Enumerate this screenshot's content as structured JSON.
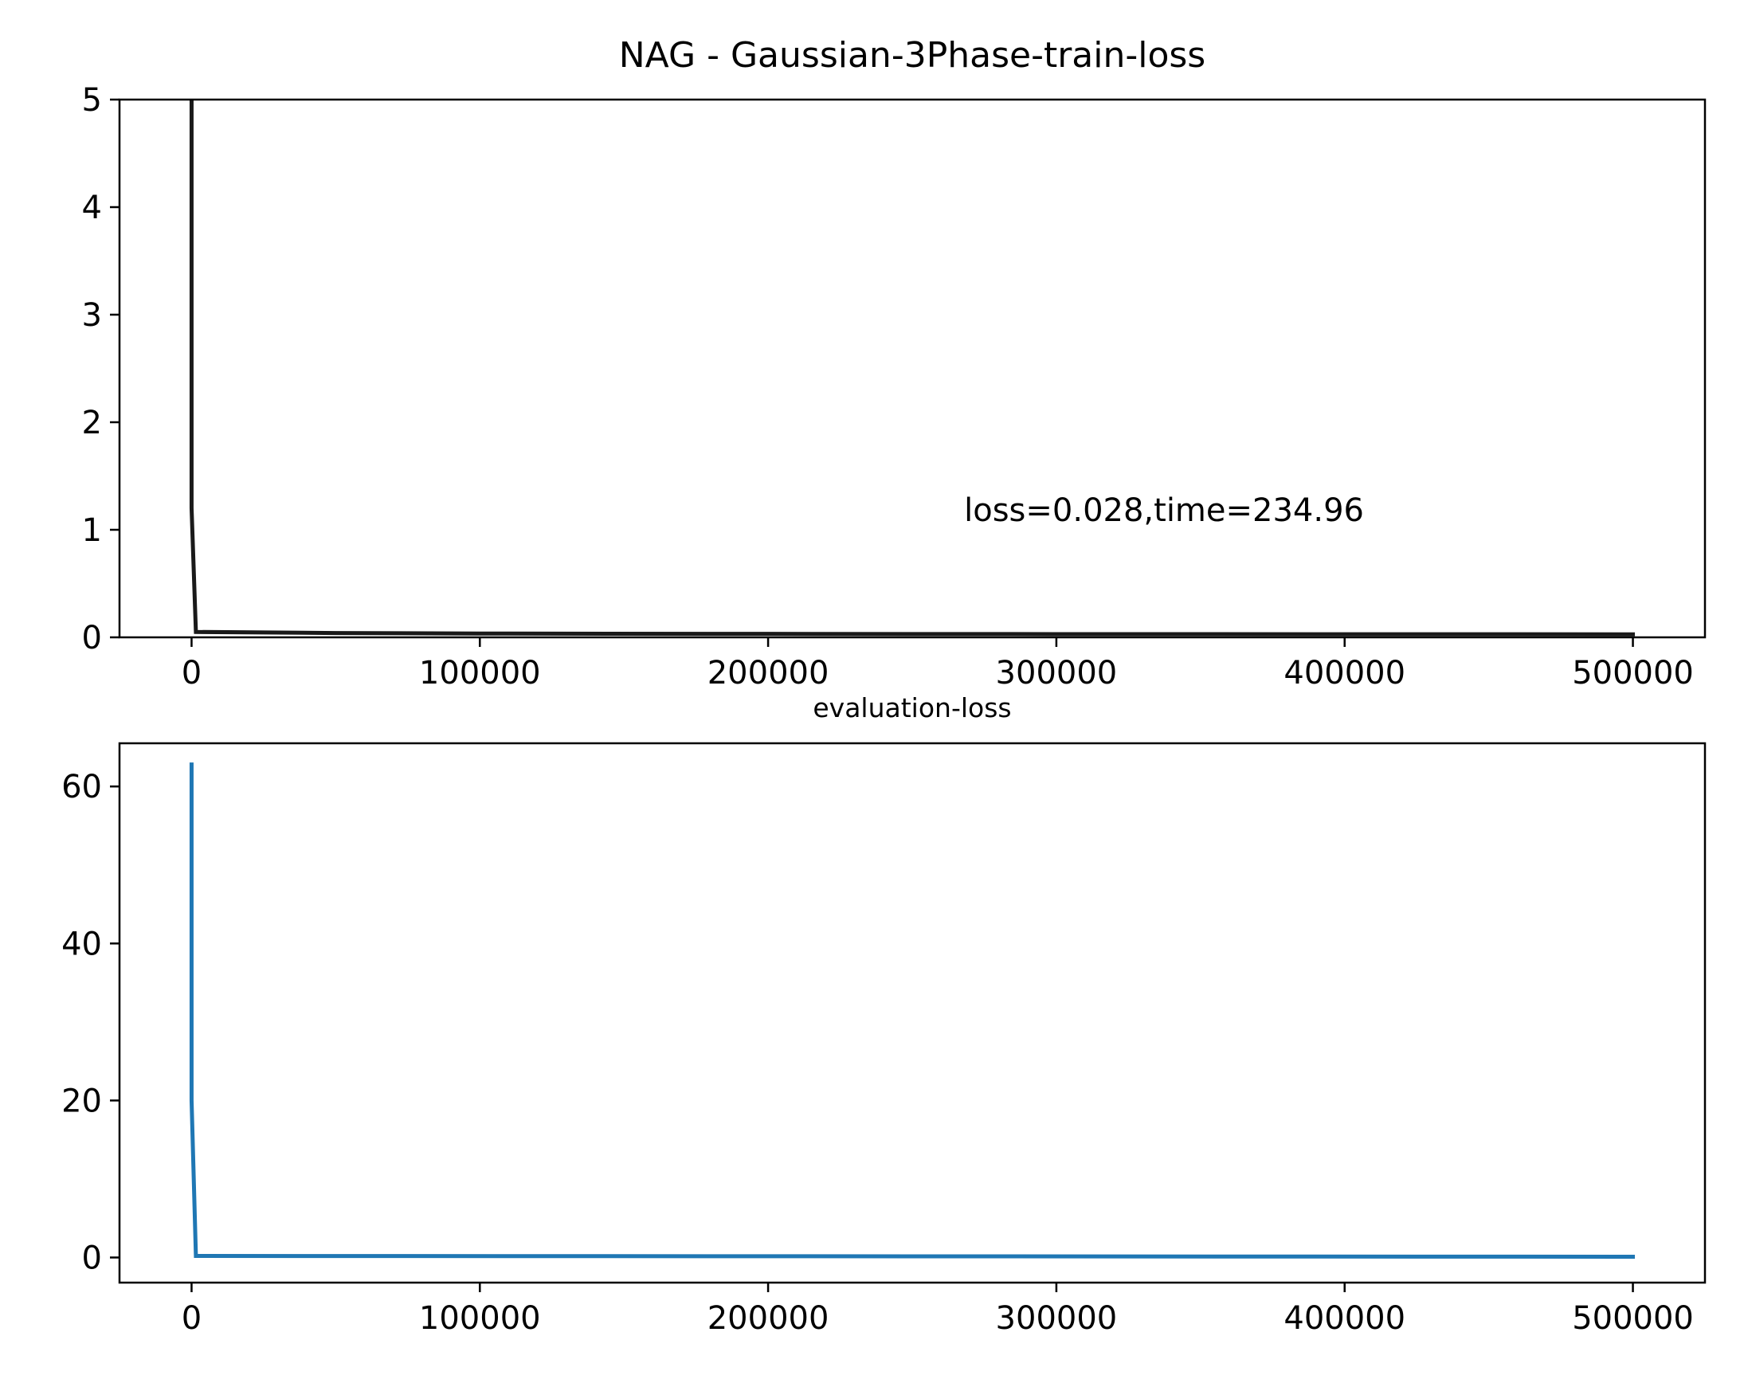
{
  "chart_data": [
    {
      "type": "line",
      "title": "NAG - Gaussian-3Phase-train-loss",
      "xlabel": "",
      "ylabel": "",
      "xlim": [
        -25000,
        525000
      ],
      "ylim": [
        0,
        5
      ],
      "xticks": [
        0,
        100000,
        200000,
        300000,
        400000,
        500000
      ],
      "xtick_labels": [
        "0",
        "100000",
        "200000",
        "300000",
        "400000",
        "500000"
      ],
      "yticks": [
        0,
        1,
        2,
        3,
        4,
        5
      ],
      "ytick_labels": [
        "0",
        "1",
        "2",
        "3",
        "4",
        "5"
      ],
      "grid": false,
      "series": [
        {
          "color": "#1a1a1a",
          "x": [
            0,
            0,
            1500,
            50000,
            100000,
            200000,
            300000,
            400000,
            500000
          ],
          "y": [
            5,
            1.2,
            0.05,
            0.04,
            0.035,
            0.032,
            0.03,
            0.029,
            0.028
          ]
        }
      ],
      "annotations": [
        {
          "text": "loss=0.028,time=234.96",
          "x": 268000,
          "y": 1.08
        }
      ]
    },
    {
      "type": "line",
      "title": "evaluation-loss",
      "xlabel": "",
      "ylabel": "",
      "xlim": [
        -25000,
        525000
      ],
      "ylim": [
        -3.2,
        65.5
      ],
      "xticks": [
        0,
        100000,
        200000,
        300000,
        400000,
        500000
      ],
      "xtick_labels": [
        "0",
        "100000",
        "200000",
        "300000",
        "400000",
        "500000"
      ],
      "yticks": [
        0,
        20,
        40,
        60
      ],
      "ytick_labels": [
        "0",
        "20",
        "40",
        "60"
      ],
      "grid": false,
      "series": [
        {
          "color": "#1f77b4",
          "x": [
            0,
            0,
            1500,
            500000
          ],
          "y": [
            62.8,
            20,
            0.2,
            0.1
          ]
        }
      ]
    }
  ]
}
